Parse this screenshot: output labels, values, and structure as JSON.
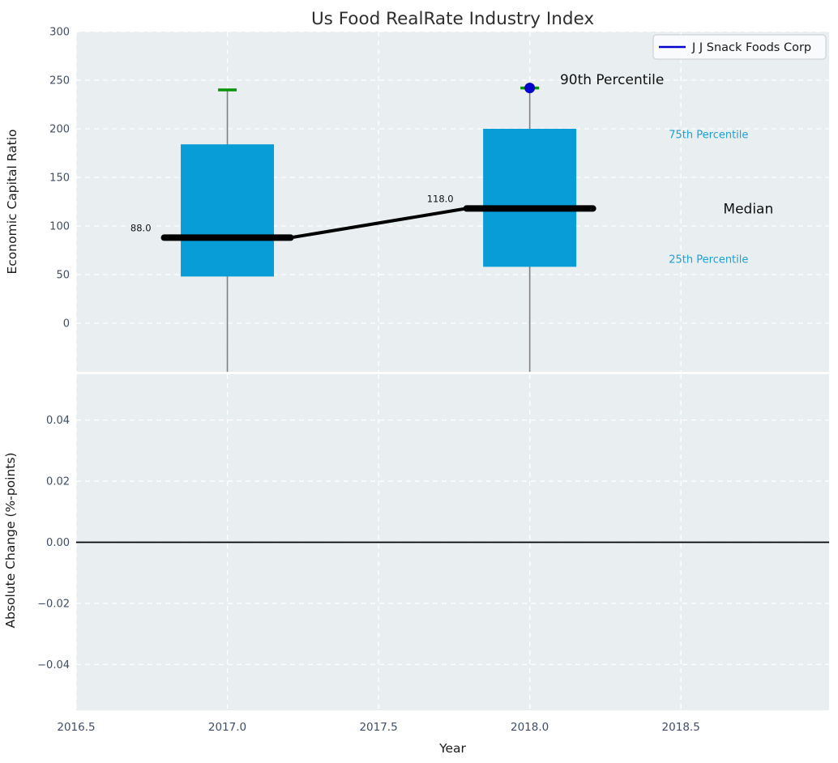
{
  "title": {
    "text": "Us Food RealRate Industry Index",
    "color": "#2e2e2e"
  },
  "legend": {
    "label": "J J Snack Foods Corp",
    "line_color": "#0000cc",
    "background": "#fbfbfd",
    "border_color": "#c9c9d2",
    "position": "upper right"
  },
  "colors": {
    "figure_background": "#ffffff",
    "axes_background": "#e9eef0",
    "grid": "#ffffff",
    "box_fill": "#089dd6",
    "median_bar": "#000000",
    "trend_line": "#000000",
    "whisker": "#808080",
    "cap_90th": "#089408",
    "company_marker": "#0000cc",
    "tick_label": "#3d4e66",
    "axis_label": "#1a1a1a",
    "percentile_label_cyan": "#1ba1d6",
    "annotation_dark": "#111111",
    "zero_line": "#000000"
  },
  "chart_data": [
    {
      "type": "box",
      "panel": "top",
      "title": "Us Food RealRate Industry Index",
      "xlabel": "Year",
      "ylabel": "Economic Capital Ratio",
      "xlim": [
        2016.5,
        2018.99
      ],
      "ylim": [
        -50,
        300
      ],
      "grid": true,
      "xtick_values": [
        2016.5,
        2017.0,
        2017.5,
        2018.0,
        2018.5
      ],
      "xtick_labels": [
        "2016.5",
        "2017.0",
        "2017.5",
        "2018.0",
        "2018.5"
      ],
      "ytick_values": [
        0,
        50,
        100,
        150,
        200,
        250,
        300
      ],
      "ytick_labels": [
        "0",
        "50",
        "100",
        "150",
        "200",
        "250",
        "300"
      ],
      "boxes": [
        {
          "x": 2017,
          "p25": 48,
          "median": 88,
          "p75": 184,
          "p90": 240,
          "median_label": "88.0",
          "whisker_low": "clipped-below-axis"
        },
        {
          "x": 2018,
          "p25": 58,
          "median": 118,
          "p75": 200,
          "p90": 242,
          "median_label": "118.0",
          "whisker_low": "clipped-below-axis"
        }
      ],
      "median_trend": {
        "x": [
          2017,
          2018
        ],
        "y": [
          88,
          118
        ]
      },
      "company_series": {
        "name": "J J Snack Foods Corp",
        "x": [
          2018
        ],
        "y": [
          242
        ]
      },
      "annotations": [
        {
          "text": "90th Percentile",
          "x": 2018.1,
          "y": 251,
          "style": "large-dark"
        },
        {
          "text": "75th Percentile",
          "x": 2018.46,
          "y": 194,
          "style": "small-cyan"
        },
        {
          "text": "Median",
          "x": 2018.64,
          "y": 118,
          "style": "large-dark"
        },
        {
          "text": "25th Percentile",
          "x": 2018.46,
          "y": 66,
          "style": "small-cyan"
        }
      ],
      "legend_entries": [
        "J J Snack Foods Corp"
      ]
    },
    {
      "type": "line",
      "panel": "bottom",
      "xlabel": "Year",
      "ylabel": "Absolute Change (%-points)",
      "xlim": [
        2016.5,
        2018.99
      ],
      "ylim": [
        -0.055,
        0.055
      ],
      "grid": true,
      "ytick_values": [
        0.04,
        0.02,
        0.0,
        -0.02,
        -0.04
      ],
      "ytick_labels": [
        "0.04",
        "0.02",
        "0.00",
        "−0.02",
        "−0.04"
      ],
      "zero_line": 0.0,
      "series": []
    }
  ]
}
